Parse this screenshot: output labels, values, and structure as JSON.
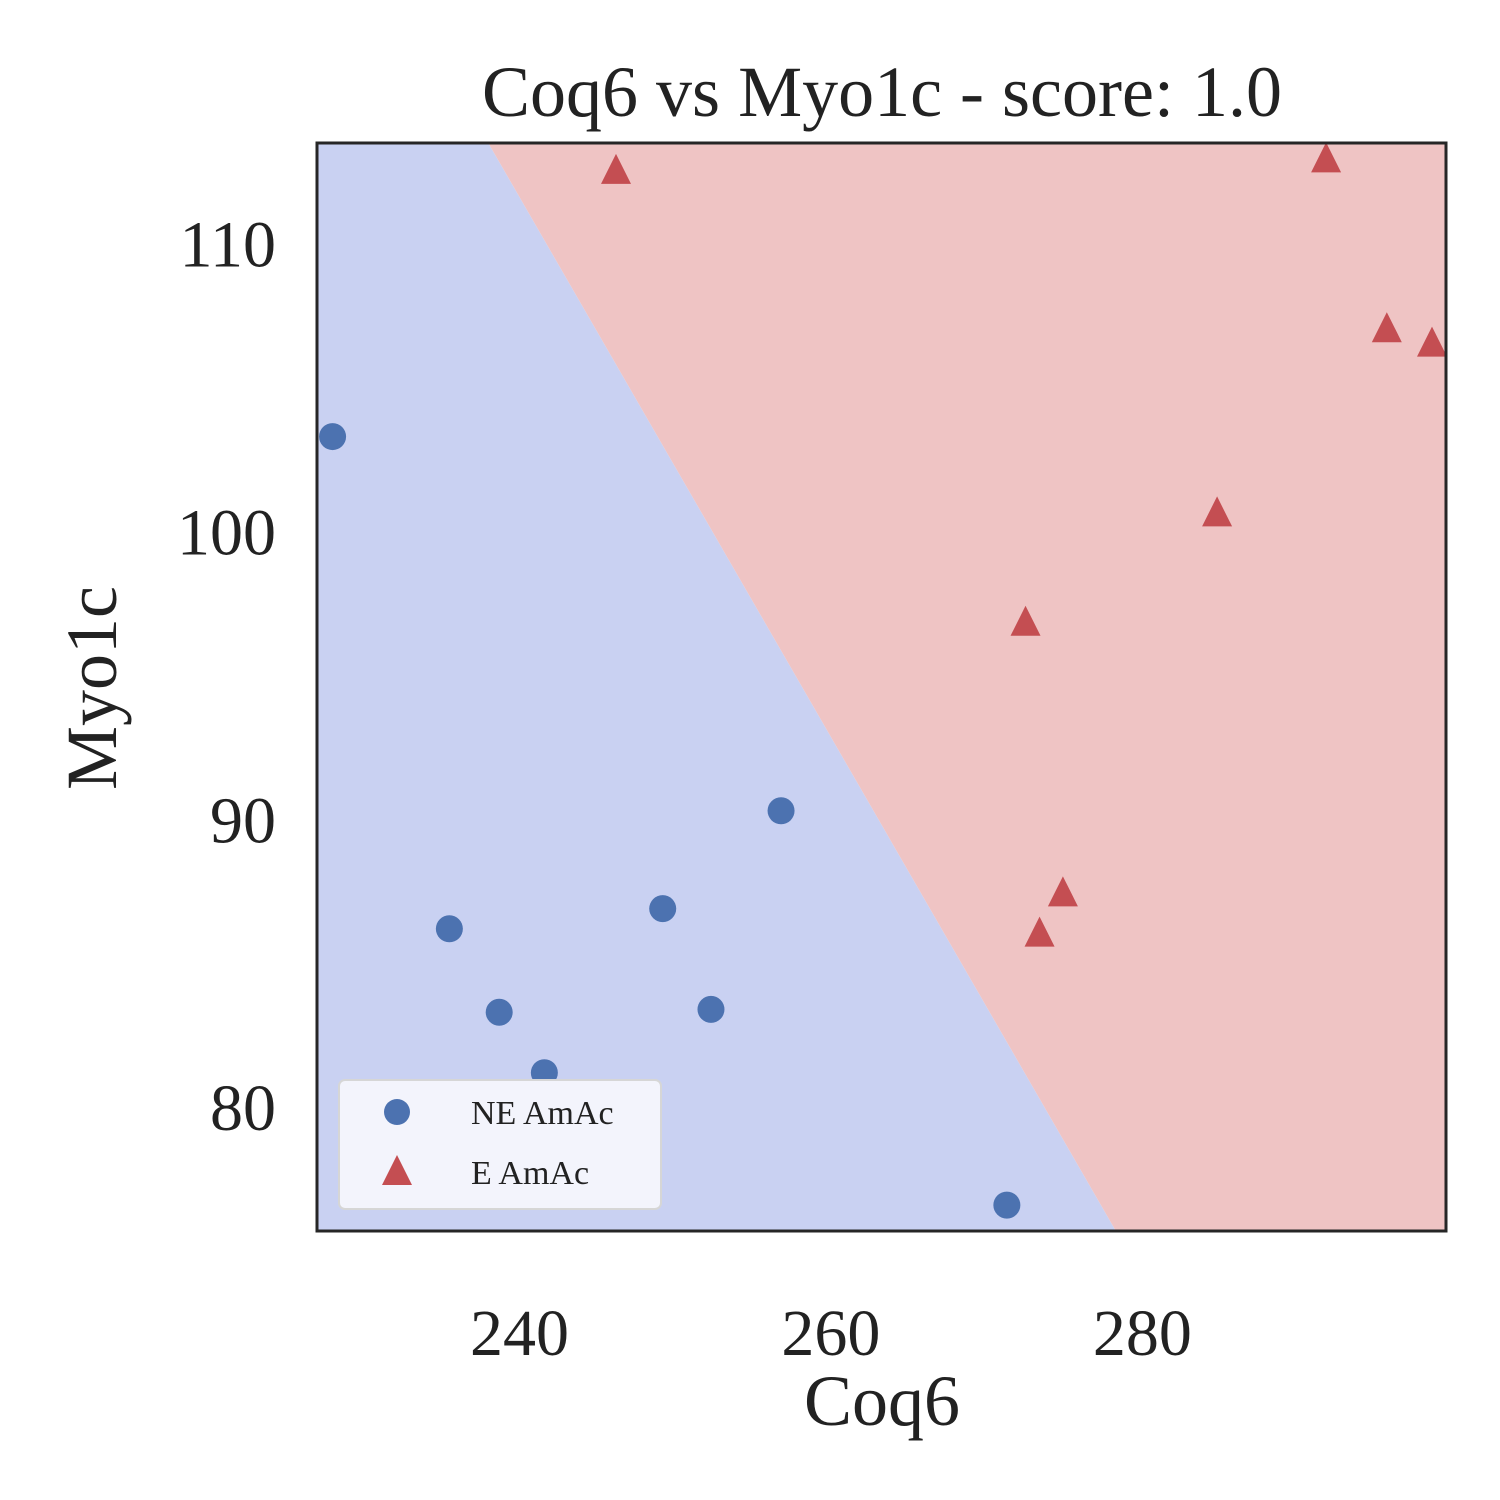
{
  "chart_data": {
    "type": "scatter",
    "title": "Coq6 vs Myo1c - score: 1.0",
    "xlabel": "Coq6",
    "ylabel": "Myo1c",
    "xlim": [
      227,
      299.5
    ],
    "ylim": [
      75.7,
      113.5
    ],
    "xticks": [
      240,
      260,
      280
    ],
    "yticks": [
      80,
      90,
      100,
      110
    ],
    "grid": false,
    "legend_position": "lower-left",
    "decision_boundary": {
      "x_at_ymax": 238,
      "x_at_ymin": 278.3
    },
    "region_colors": {
      "NE AmAc": "#c9d1f2",
      "E AmAc": "#efc4c4"
    },
    "series": [
      {
        "name": "NE AmAc",
        "marker": "circle",
        "color": "#4c72b0",
        "points": [
          [
            228,
            103.3
          ],
          [
            235.5,
            86.2
          ],
          [
            238.7,
            83.3
          ],
          [
            241.6,
            81.2
          ],
          [
            249.2,
            86.9
          ],
          [
            252.3,
            83.4
          ],
          [
            256.8,
            90.3
          ],
          [
            271.3,
            76.6
          ]
        ]
      },
      {
        "name": "E AmAc",
        "marker": "triangle",
        "color": "#c44e52",
        "points": [
          [
            246.2,
            112.6
          ],
          [
            272.5,
            96.9
          ],
          [
            273.4,
            86.1
          ],
          [
            274.9,
            87.5
          ],
          [
            284.8,
            100.7
          ],
          [
            291.8,
            113.0
          ],
          [
            295.7,
            107.1
          ],
          [
            298.6,
            106.6
          ]
        ]
      }
    ]
  }
}
